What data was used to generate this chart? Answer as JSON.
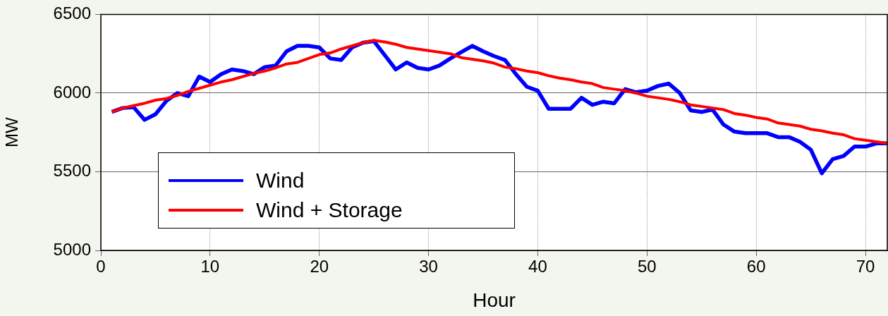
{
  "chart_data": {
    "type": "line",
    "xlabel": "Hour",
    "ylabel": "MW",
    "x": [
      1,
      2,
      3,
      4,
      5,
      6,
      7,
      8,
      9,
      10,
      11,
      12,
      13,
      14,
      15,
      16,
      17,
      18,
      19,
      20,
      21,
      22,
      23,
      24,
      25,
      26,
      27,
      28,
      29,
      30,
      31,
      32,
      33,
      34,
      35,
      36,
      37,
      38,
      39,
      40,
      41,
      42,
      43,
      44,
      45,
      46,
      47,
      48,
      49,
      50,
      51,
      52,
      53,
      54,
      55,
      56,
      57,
      58,
      59,
      60,
      61,
      62,
      63,
      64,
      65,
      66,
      67,
      68,
      69,
      70,
      71,
      72
    ],
    "series": [
      {
        "name": "Wind",
        "color": "#0000ff",
        "values": [
          5880,
          5905,
          5910,
          5830,
          5865,
          5950,
          6000,
          5980,
          6105,
          6070,
          6120,
          6150,
          6140,
          6120,
          6165,
          6175,
          6265,
          6300,
          6300,
          6290,
          6220,
          6210,
          6290,
          6320,
          6330,
          6240,
          6150,
          6195,
          6160,
          6150,
          6175,
          6220,
          6260,
          6300,
          6265,
          6235,
          6210,
          6120,
          6040,
          6015,
          5900,
          5900,
          5900,
          5970,
          5925,
          5945,
          5935,
          6025,
          6005,
          6015,
          6045,
          6060,
          6000,
          5890,
          5880,
          5895,
          5800,
          5755,
          5745,
          5745,
          5745,
          5720,
          5720,
          5690,
          5640,
          5490,
          5580,
          5600,
          5660,
          5660,
          5680,
          5680
        ]
      },
      {
        "name": "Wind + Storage",
        "color": "#ff0000",
        "values": [
          5880,
          5905,
          5920,
          5935,
          5955,
          5965,
          5985,
          6010,
          6030,
          6050,
          6070,
          6085,
          6105,
          6125,
          6140,
          6160,
          6185,
          6195,
          6220,
          6245,
          6255,
          6280,
          6300,
          6320,
          6335,
          6325,
          6310,
          6290,
          6280,
          6270,
          6260,
          6250,
          6225,
          6215,
          6205,
          6190,
          6165,
          6155,
          6140,
          6130,
          6110,
          6095,
          6085,
          6070,
          6060,
          6035,
          6025,
          6015,
          6000,
          5980,
          5970,
          5960,
          5945,
          5925,
          5915,
          5905,
          5895,
          5870,
          5860,
          5845,
          5835,
          5810,
          5800,
          5790,
          5770,
          5760,
          5745,
          5735,
          5710,
          5700,
          5690,
          5680
        ]
      }
    ],
    "xlim": [
      0,
      72
    ],
    "xticks": [
      0,
      10,
      20,
      30,
      40,
      50,
      60,
      70
    ],
    "ylim": [
      5000,
      6500
    ],
    "yticks": [
      5000,
      5500,
      6000,
      6500
    ],
    "grid": true,
    "legend": "bottom left",
    "marker": "none",
    "line_style": "solid"
  }
}
